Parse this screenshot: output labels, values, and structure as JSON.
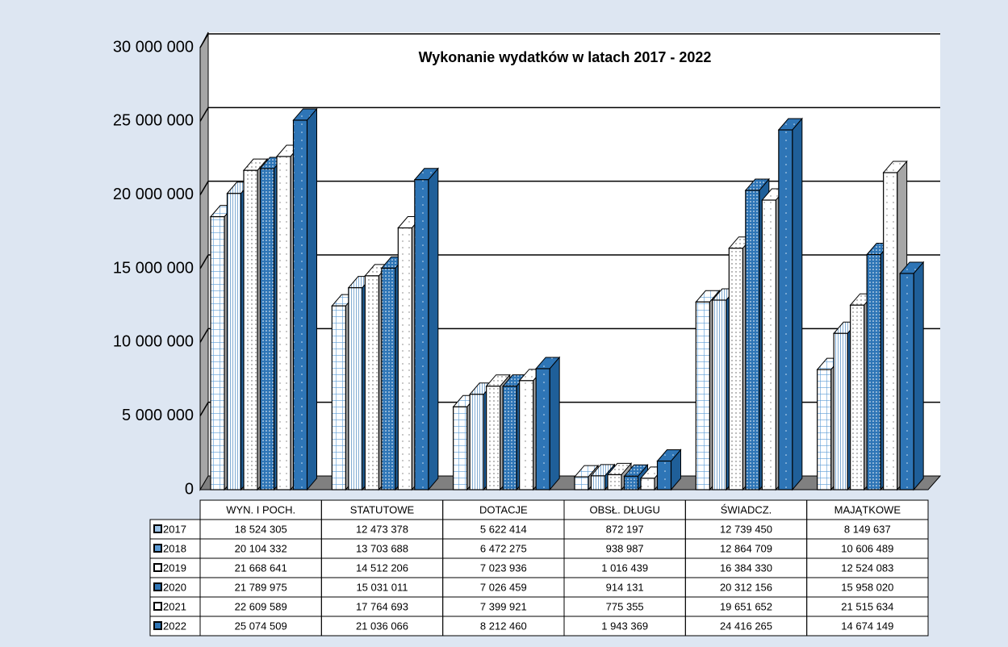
{
  "chart_data": {
    "type": "bar3d",
    "title": "Wykonanie wydatków w latach 2017 - 2022",
    "categories": [
      "WYN. I POCH.",
      "STATUTOWE",
      "DOTACJE",
      "OBSŁ. DŁUGU",
      "ŚWIADCZ.",
      "MAJĄTKOWE"
    ],
    "series": [
      {
        "name": "2017",
        "color": "#9dc3e6",
        "values": [
          18524305,
          12473378,
          5622414,
          872197,
          12739450,
          8149637
        ],
        "value_labels": [
          "18 524 305",
          "12 473 378",
          "5 622 414",
          "872 197",
          "12 739 450",
          "8 149 637"
        ]
      },
      {
        "name": "2018",
        "color": "#5b9bd5",
        "values": [
          20104332,
          13703688,
          6472275,
          938987,
          12864709,
          10606489
        ],
        "value_labels": [
          "20 104 332",
          "13 703 688",
          "6 472 275",
          "938 987",
          "12 864 709",
          "10 606 489"
        ]
      },
      {
        "name": "2019",
        "color": "#ffffff",
        "values": [
          21668641,
          14512206,
          7023936,
          1016439,
          16384330,
          12524083
        ],
        "value_labels": [
          "21 668 641",
          "14 512 206",
          "7 023 936",
          "1 016 439",
          "16 384 330",
          "12 524 083"
        ]
      },
      {
        "name": "2020",
        "color": "#2e75b6",
        "values": [
          21789975,
          15031011,
          7026459,
          914131,
          20312156,
          15958020
        ],
        "value_labels": [
          "21 789 975",
          "15 031 011",
          "7 026 459",
          "914 131",
          "20 312 156",
          "15 958 020"
        ]
      },
      {
        "name": "2021",
        "color": "#fdfdfd",
        "values": [
          22609589,
          17764693,
          7399921,
          775355,
          19651652,
          21515634
        ],
        "value_labels": [
          "22 609 589",
          "17 764 693",
          "7 399 921",
          "775 355",
          "19 651 652",
          "21 515 634"
        ]
      },
      {
        "name": "2022",
        "color": "#2e75b6",
        "values": [
          25074509,
          21036066,
          8212460,
          1943369,
          24416265,
          14674149
        ],
        "value_labels": [
          "25 074 509",
          "21 036 066",
          "8 212 460",
          "1 943 369",
          "24 416 265",
          "14 674 149"
        ]
      }
    ],
    "ylim": [
      0,
      30000000
    ],
    "yticks": [
      {
        "value": 0,
        "label": "0"
      },
      {
        "value": 5000000,
        "label": "5 000 000"
      },
      {
        "value": 10000000,
        "label": "10 000 000"
      },
      {
        "value": 15000000,
        "label": "15 000 000"
      },
      {
        "value": 20000000,
        "label": "20 000 000"
      },
      {
        "value": 25000000,
        "label": "25 000 000"
      },
      {
        "value": 30000000,
        "label": "30 000 000"
      }
    ],
    "grid": true
  }
}
